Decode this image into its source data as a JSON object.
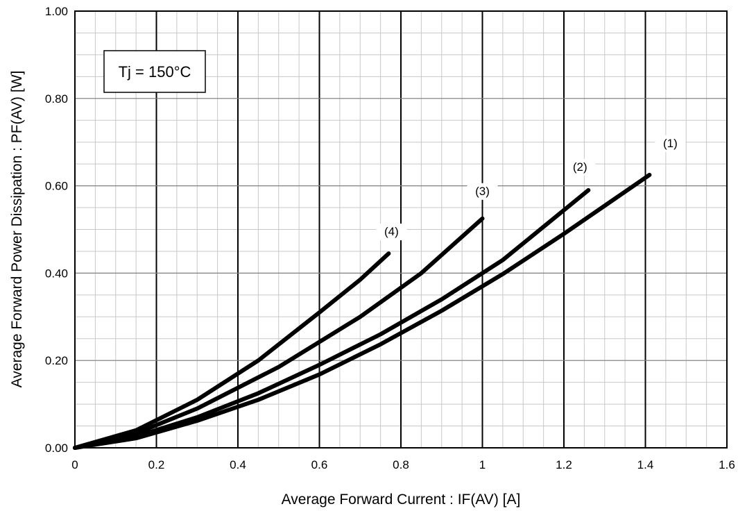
{
  "chart_data": {
    "type": "line",
    "title": "",
    "xlabel": "Average Forward Current : IF(AV) [A]",
    "ylabel": "Average Forward Power Dissipation : PF(AV) [W]",
    "xlim": [
      0,
      1.6
    ],
    "ylim": [
      0,
      1.0
    ],
    "x_ticks": [
      "0",
      "0.2",
      "0.4",
      "0.6",
      "0.8",
      "1",
      "1.2",
      "1.4",
      "1.6"
    ],
    "y_ticks": [
      "0.00",
      "0.20",
      "0.40",
      "0.60",
      "0.80",
      "1.00"
    ],
    "grid": true,
    "annotation": "Tj = 150°C",
    "series": [
      {
        "label": "(1)",
        "points": [
          [
            0,
            0
          ],
          [
            0.15,
            0.022
          ],
          [
            0.3,
            0.062
          ],
          [
            0.45,
            0.11
          ],
          [
            0.6,
            0.168
          ],
          [
            0.75,
            0.237
          ],
          [
            0.9,
            0.314
          ],
          [
            1.05,
            0.398
          ],
          [
            1.2,
            0.49
          ],
          [
            1.41,
            0.625
          ]
        ]
      },
      {
        "label": "(2)",
        "points": [
          [
            0,
            0
          ],
          [
            0.15,
            0.026
          ],
          [
            0.3,
            0.07
          ],
          [
            0.45,
            0.125
          ],
          [
            0.6,
            0.19
          ],
          [
            0.75,
            0.26
          ],
          [
            0.9,
            0.34
          ],
          [
            1.05,
            0.43
          ],
          [
            1.26,
            0.59
          ]
        ]
      },
      {
        "label": "(3)",
        "points": [
          [
            0,
            0
          ],
          [
            0.15,
            0.033
          ],
          [
            0.3,
            0.09
          ],
          [
            0.5,
            0.185
          ],
          [
            0.7,
            0.3
          ],
          [
            0.85,
            0.4
          ],
          [
            1.0,
            0.525
          ]
        ]
      },
      {
        "label": "(4)",
        "points": [
          [
            0,
            0
          ],
          [
            0.15,
            0.04
          ],
          [
            0.3,
            0.11
          ],
          [
            0.45,
            0.2
          ],
          [
            0.6,
            0.31
          ],
          [
            0.7,
            0.385
          ],
          [
            0.77,
            0.445
          ]
        ]
      }
    ]
  }
}
